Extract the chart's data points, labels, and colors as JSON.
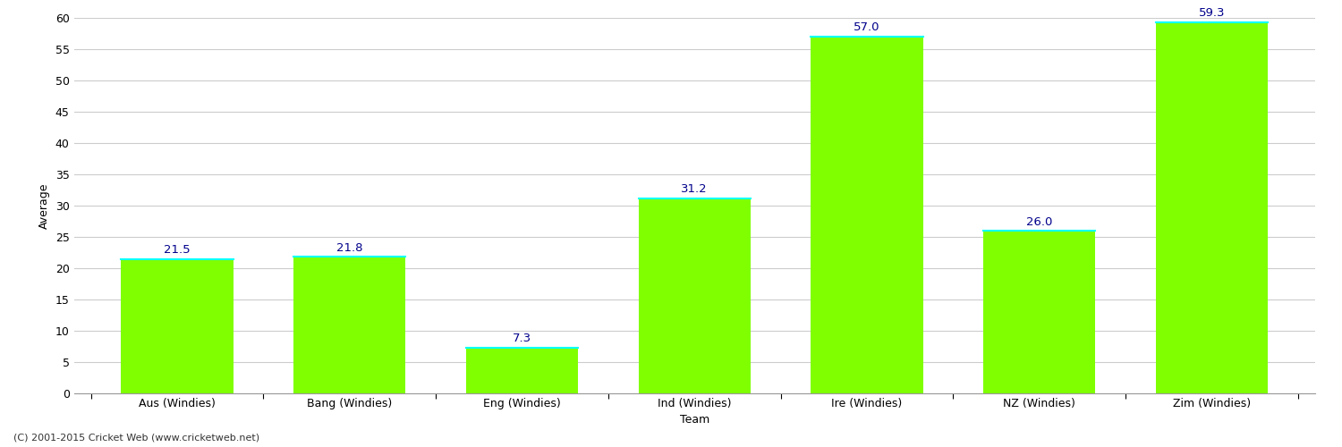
{
  "show_title": false,
  "categories": [
    "Aus (Windies)",
    "Bang (Windies)",
    "Eng (Windies)",
    "Ind (Windies)",
    "Ire (Windies)",
    "NZ (Windies)",
    "Zim (Windies)"
  ],
  "values": [
    21.5,
    21.8,
    7.3,
    31.2,
    57.0,
    26.0,
    59.3
  ],
  "bar_color": "#7FFF00",
  "bar_edge_color": "#7FFF00",
  "bar_top_edge_color": "#00FFFF",
  "value_label_color": "#00008B",
  "value_label_fontsize": 9.5,
  "xlabel": "Team",
  "ylabel": "Average",
  "ylim": [
    0,
    60
  ],
  "yticks": [
    0,
    5,
    10,
    15,
    20,
    25,
    30,
    35,
    40,
    45,
    50,
    55,
    60
  ],
  "grid_color": "#cccccc",
  "background_color": "#ffffff",
  "axis_label_fontsize": 9,
  "tick_label_fontsize": 9,
  "footer_text": "(C) 2001-2015 Cricket Web (www.cricketweb.net)",
  "footer_fontsize": 8,
  "footer_color": "#333333",
  "bar_width": 0.65
}
